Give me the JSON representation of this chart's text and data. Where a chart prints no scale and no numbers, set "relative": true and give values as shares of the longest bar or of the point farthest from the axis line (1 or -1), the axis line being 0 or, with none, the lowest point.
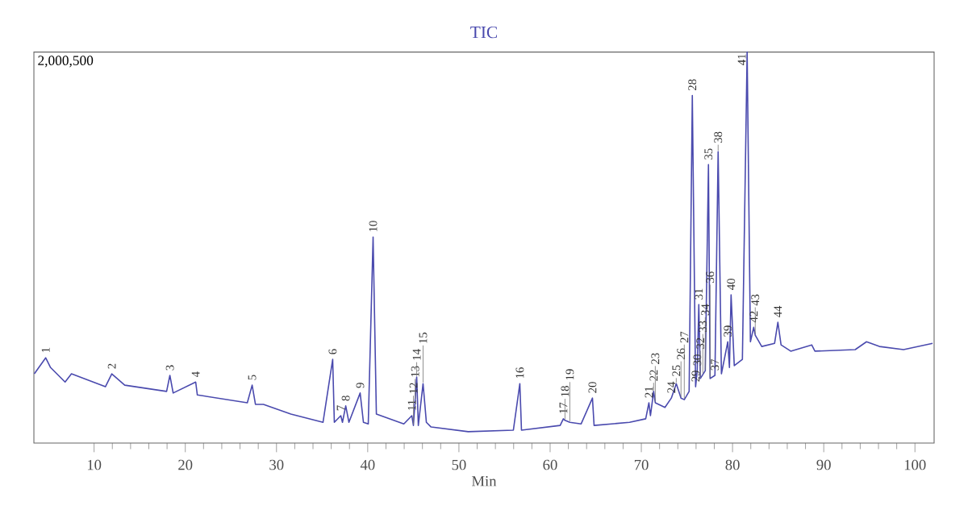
{
  "chart_data": {
    "type": "line",
    "title": "TIC",
    "xlabel": "Min",
    "relative": true,
    "color": "#4a4aae",
    "xlim": [
      3.4,
      102.1
    ],
    "xticks": [
      10,
      20,
      30,
      40,
      50,
      60,
      70,
      80,
      90,
      100
    ],
    "x": [
      3.45,
      4.69,
      5.23,
      6.82,
      7.52,
      11.24,
      11.94,
      13.36,
      17.95,
      18.31,
      18.67,
      21.14,
      21.32,
      26.8,
      27.33,
      27.69,
      28.57,
      31.57,
      35.1,
      36.16,
      36.34,
      37.05,
      37.23,
      37.59,
      37.94,
      39.17,
      39.53,
      40.06,
      40.59,
      40.95,
      43.96,
      44.84,
      45.01,
      45.37,
      45.55,
      46.07,
      46.43,
      46.95,
      51.02,
      55.97,
      56.68,
      56.86,
      61.1,
      61.45,
      61.63,
      62.16,
      63.4,
      64.64,
      64.82,
      68.71,
      70.48,
      70.83,
      71.0,
      71.35,
      71.53,
      72.59,
      73.29,
      73.83,
      74.35,
      74.71,
      75.24,
      75.59,
      75.95,
      76.13,
      76.3,
      76.47,
      77.01,
      77.36,
      77.54,
      78.07,
      78.42,
      78.78,
      79.48,
      79.66,
      79.84,
      80.19,
      81.08,
      81.6,
      81.96,
      82.32,
      82.49,
      83.2,
      84.61,
      84.97,
      85.32,
      86.38,
      88.68,
      89.03,
      93.45,
      94.69,
      96.1,
      98.75,
      101.93
    ],
    "values": [
      0.177,
      0.218,
      0.193,
      0.156,
      0.177,
      0.144,
      0.177,
      0.148,
      0.132,
      0.173,
      0.128,
      0.156,
      0.123,
      0.103,
      0.148,
      0.099,
      0.099,
      0.074,
      0.053,
      0.214,
      0.053,
      0.07,
      0.053,
      0.095,
      0.053,
      0.128,
      0.053,
      0.049,
      0.527,
      0.074,
      0.049,
      0.07,
      0.045,
      0.169,
      0.045,
      0.152,
      0.053,
      0.041,
      0.029,
      0.033,
      0.152,
      0.033,
      0.045,
      0.062,
      0.058,
      0.053,
      0.049,
      0.115,
      0.045,
      0.053,
      0.062,
      0.103,
      0.07,
      0.132,
      0.103,
      0.091,
      0.115,
      0.152,
      0.115,
      0.111,
      0.132,
      0.889,
      0.144,
      0.185,
      0.354,
      0.165,
      0.185,
      0.712,
      0.165,
      0.173,
      0.745,
      0.177,
      0.259,
      0.193,
      0.379,
      0.198,
      0.214,
      1.0,
      0.259,
      0.296,
      0.276,
      0.247,
      0.255,
      0.309,
      0.251,
      0.235,
      0.251,
      0.235,
      0.239,
      0.259,
      0.247,
      0.239,
      0.255
    ],
    "annotations": [
      "2,000,500",
      {
        "text": "1",
        "x": 4.69,
        "y": 0.218
      },
      {
        "text": "2",
        "x": 11.94,
        "y": 0.177
      },
      {
        "text": "3",
        "x": 18.31,
        "y": 0.173
      },
      {
        "text": "4",
        "x": 21.14,
        "y": 0.156
      },
      {
        "text": "5",
        "x": 27.33,
        "y": 0.148
      },
      {
        "text": "6",
        "x": 36.16,
        "y": 0.214
      },
      {
        "text": "7",
        "x": 37.05,
        "y": 0.07
      },
      {
        "text": "8",
        "x": 37.59,
        "y": 0.095
      },
      {
        "text": "9",
        "x": 39.17,
        "y": 0.128
      },
      {
        "text": "10",
        "x": 40.59,
        "y": 0.527
      },
      {
        "text": "11",
        "x": 44.84,
        "y": 0.07
      },
      {
        "text": "12",
        "x": 45.01,
        "y": 0.045
      },
      {
        "text": "13",
        "x": 45.2,
        "y": 0.11
      },
      {
        "text": "14",
        "x": 45.37,
        "y": 0.169
      },
      {
        "text": "15",
        "x": 46.07,
        "y": 0.152
      },
      {
        "text": "16",
        "x": 56.68,
        "y": 0.152
      },
      {
        "text": "17",
        "x": 61.45,
        "y": 0.062
      },
      {
        "text": "18",
        "x": 61.63,
        "y": 0.058
      },
      {
        "text": "19",
        "x": 62.16,
        "y": 0.053
      },
      {
        "text": "20",
        "x": 64.64,
        "y": 0.115
      },
      {
        "text": "21",
        "x": 70.83,
        "y": 0.103
      },
      {
        "text": "22",
        "x": 71.35,
        "y": 0.132
      },
      {
        "text": "23",
        "x": 71.53,
        "y": 0.103
      },
      {
        "text": "24",
        "x": 73.29,
        "y": 0.115
      },
      {
        "text": "25",
        "x": 73.83,
        "y": 0.152
      },
      {
        "text": "26",
        "x": 74.35,
        "y": 0.115
      },
      {
        "text": "27",
        "x": 74.71,
        "y": 0.111
      },
      {
        "text": "28",
        "x": 75.59,
        "y": 0.889
      },
      {
        "text": "29",
        "x": 75.95,
        "y": 0.144
      },
      {
        "text": "30",
        "x": 76.13,
        "y": 0.185
      },
      {
        "text": "31",
        "x": 76.3,
        "y": 0.354
      },
      {
        "text": "32",
        "x": 76.47,
        "y": 0.165
      },
      {
        "text": "33",
        "x": 76.74,
        "y": 0.175
      },
      {
        "text": "34",
        "x": 77.01,
        "y": 0.185
      },
      {
        "text": "35",
        "x": 77.36,
        "y": 0.712
      },
      {
        "text": "36",
        "x": 77.54,
        "y": 0.165
      },
      {
        "text": "37",
        "x": 78.07,
        "y": 0.173
      },
      {
        "text": "38",
        "x": 78.42,
        "y": 0.745
      },
      {
        "text": "39",
        "x": 79.48,
        "y": 0.259
      },
      {
        "text": "40",
        "x": 79.84,
        "y": 0.379
      },
      {
        "text": "41",
        "x": 81.6,
        "y": 1.0
      },
      {
        "text": "42",
        "x": 82.32,
        "y": 0.296
      },
      {
        "text": "43",
        "x": 82.49,
        "y": 0.276
      },
      {
        "text": "44",
        "x": 84.97,
        "y": 0.309
      }
    ]
  }
}
